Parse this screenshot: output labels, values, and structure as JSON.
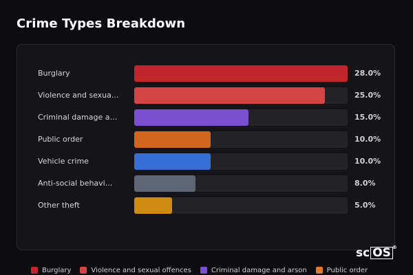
{
  "chart_data": {
    "type": "bar",
    "orientation": "horizontal",
    "title": "Crime Types Breakdown",
    "categories": [
      "Burglary",
      "Violence and sexua...",
      "Criminal damage an...",
      "Public order",
      "Vehicle crime",
      "Anti-social behavi...",
      "Other theft"
    ],
    "values": [
      28.0,
      25.0,
      15.0,
      10.0,
      10.0,
      8.0,
      5.0
    ],
    "value_labels": [
      "28.0%",
      "25.0%",
      "15.0%",
      "10.0%",
      "10.0%",
      "8.0%",
      "5.0%"
    ],
    "colors": [
      "#c0262b",
      "#d34545",
      "#7a4fd0",
      "#d2661e",
      "#3670d6",
      "#5d6674",
      "#cf8a12"
    ],
    "xlim": [
      0,
      28
    ],
    "legend_position": "bottom",
    "legend": [
      {
        "label": "Burglary",
        "color": "#c0262b"
      },
      {
        "label": "Violence and sexual offences",
        "color": "#d34545"
      },
      {
        "label": "Criminal damage and arson",
        "color": "#7a4fd0"
      },
      {
        "label": "Public order",
        "color": "#e07a26"
      }
    ]
  },
  "brand": {
    "text_prefix": "sc",
    "text_box": "OS",
    "mark": "®"
  }
}
